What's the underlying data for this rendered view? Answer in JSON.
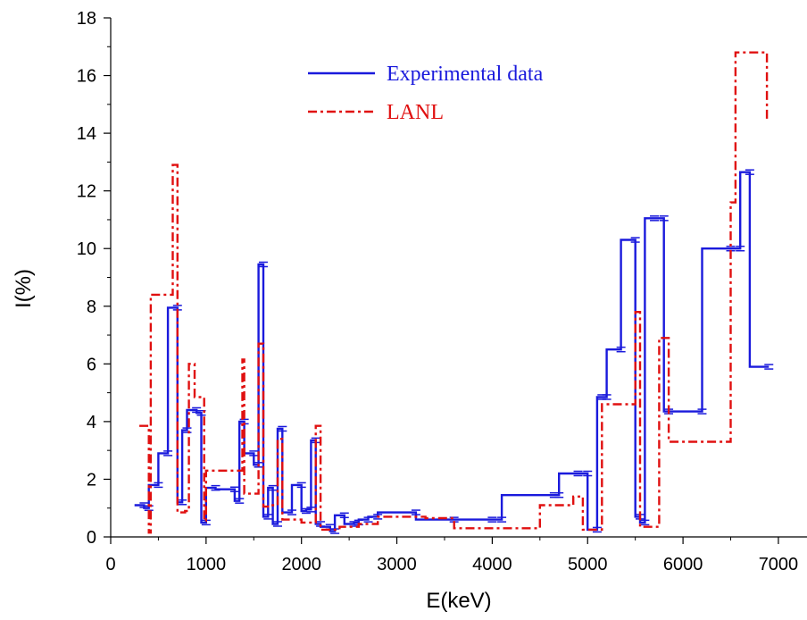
{
  "chart_data": {
    "type": "line",
    "xlabel": "E(keV)",
    "ylabel": "I(%)",
    "xlim": [
      0,
      7300
    ],
    "ylim": [
      0,
      18
    ],
    "x_ticks": [
      "0",
      "1000",
      "2000",
      "3000",
      "4000",
      "5000",
      "6000",
      "7000"
    ],
    "y_ticks": [
      "0",
      "2",
      "4",
      "6",
      "8",
      "10",
      "12",
      "14",
      "16",
      "18"
    ],
    "legend_position": "top-center",
    "grid": false,
    "series": [
      {
        "name": "Experimental data",
        "color": "#1a1adc",
        "style": "solid",
        "x": [
          250,
          350,
          400,
          500,
          600,
          700,
          750,
          800,
          900,
          950,
          1000,
          1100,
          1300,
          1350,
          1400,
          1500,
          1550,
          1600,
          1650,
          1700,
          1750,
          1800,
          1900,
          2000,
          2050,
          2100,
          2150,
          2200,
          2300,
          2350,
          2450,
          2550,
          2600,
          2700,
          2800,
          3200,
          3600,
          4000,
          4100,
          4650,
          4700,
          4900,
          5000,
          5100,
          5150,
          5200,
          5350,
          5500,
          5550,
          5600,
          5700,
          5800,
          5850,
          6200,
          6500,
          6600,
          6700,
          6900
        ],
        "y": [
          1.1,
          1.0,
          1.8,
          2.9,
          7.95,
          1.2,
          3.7,
          4.4,
          4.3,
          0.5,
          1.7,
          1.65,
          1.25,
          4.0,
          2.9,
          2.5,
          9.45,
          0.7,
          1.7,
          0.45,
          3.75,
          0.85,
          1.8,
          0.9,
          0.95,
          3.35,
          0.45,
          0.35,
          0.2,
          0.75,
          0.45,
          0.5,
          0.6,
          0.7,
          0.85,
          0.6,
          0.6,
          0.6,
          1.45,
          1.45,
          2.2,
          2.2,
          0.25,
          4.85,
          4.85,
          6.5,
          10.3,
          0.7,
          0.5,
          11.05,
          11.05,
          4.35,
          4.35,
          10.0,
          10.0,
          12.65,
          5.9,
          5.9
        ]
      },
      {
        "name": "LANL",
        "color": "#e01010",
        "style": "dash-dot",
        "x": [
          300,
          400,
          420,
          650,
          700,
          780,
          820,
          880,
          920,
          980,
          1000,
          1100,
          1300,
          1380,
          1400,
          1450,
          1550,
          1600,
          1650,
          1750,
          1800,
          1900,
          2000,
          2100,
          2150,
          2200,
          2400,
          2600,
          2800,
          3300,
          3600,
          4100,
          4400,
          4500,
          4850,
          4950,
          5050,
          5150,
          5200,
          5500,
          5550,
          5600,
          5750,
          5850,
          6000,
          6400,
          6500,
          6550,
          6850,
          6880
        ],
        "y": [
          3.85,
          0.15,
          8.4,
          12.9,
          0.85,
          0.9,
          6.0,
          4.85,
          4.85,
          0.55,
          2.3,
          2.3,
          2.3,
          6.15,
          1.5,
          1.5,
          6.7,
          1.05,
          1.1,
          3.4,
          0.6,
          0.6,
          0.5,
          0.5,
          3.85,
          0.25,
          0.35,
          0.45,
          0.7,
          0.65,
          0.3,
          0.3,
          0.3,
          1.1,
          1.4,
          0.25,
          0.25,
          4.6,
          4.6,
          7.8,
          0.35,
          0.35,
          6.9,
          3.3,
          3.3,
          3.3,
          11.6,
          16.8,
          16.8,
          14.5
        ]
      }
    ]
  }
}
